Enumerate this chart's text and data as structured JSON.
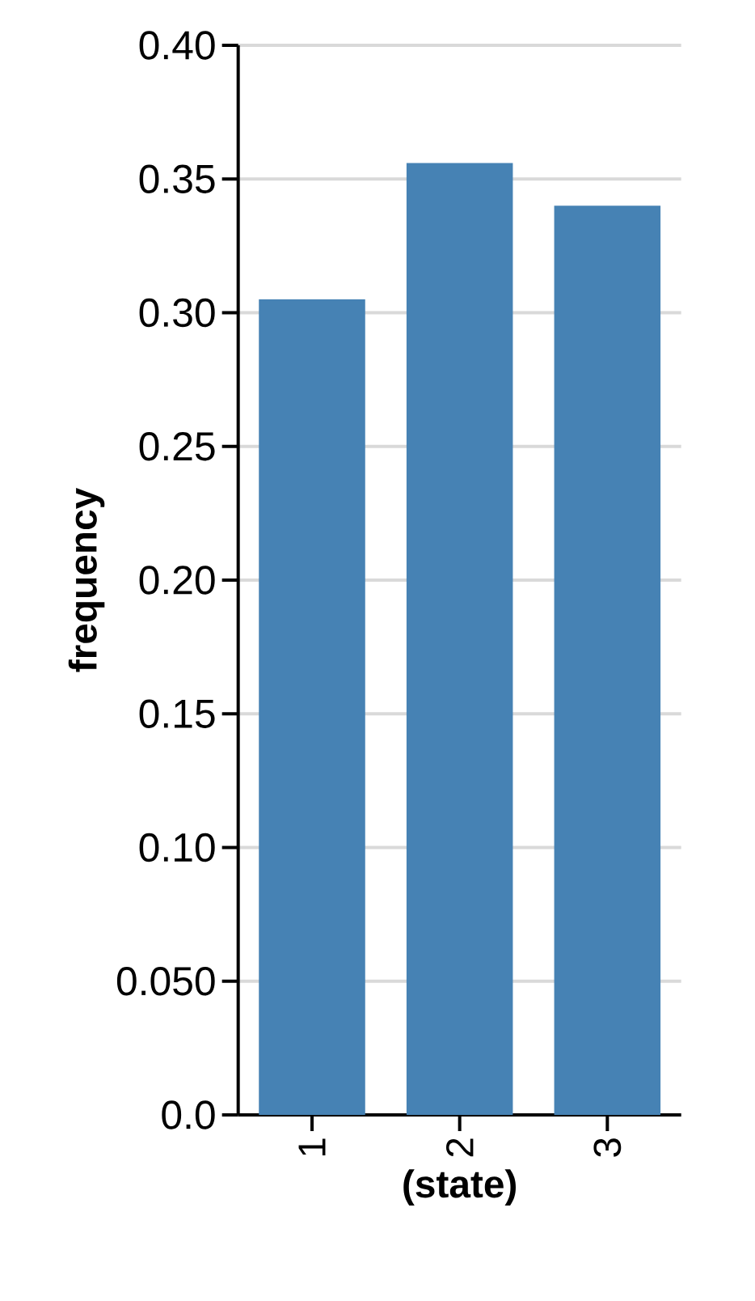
{
  "chart_data": {
    "type": "bar",
    "xlabel": "(state)",
    "ylabel": "frequency",
    "categories": [
      "1",
      "2",
      "3"
    ],
    "values": [
      0.305,
      0.356,
      0.34
    ],
    "color": "#4682b4",
    "ylim": [
      0,
      0.4
    ],
    "yticks": [
      {
        "value": 0,
        "label": "0.0"
      },
      {
        "value": 0.05,
        "label": "0.050"
      },
      {
        "value": 0.1,
        "label": "0.10"
      },
      {
        "value": 0.15,
        "label": "0.15"
      },
      {
        "value": 0.2,
        "label": "0.20"
      },
      {
        "value": 0.25,
        "label": "0.25"
      },
      {
        "value": 0.3,
        "label": "0.30"
      },
      {
        "value": 0.35,
        "label": "0.35"
      },
      {
        "value": 0.4,
        "label": "0.40"
      }
    ],
    "grid": "y"
  }
}
